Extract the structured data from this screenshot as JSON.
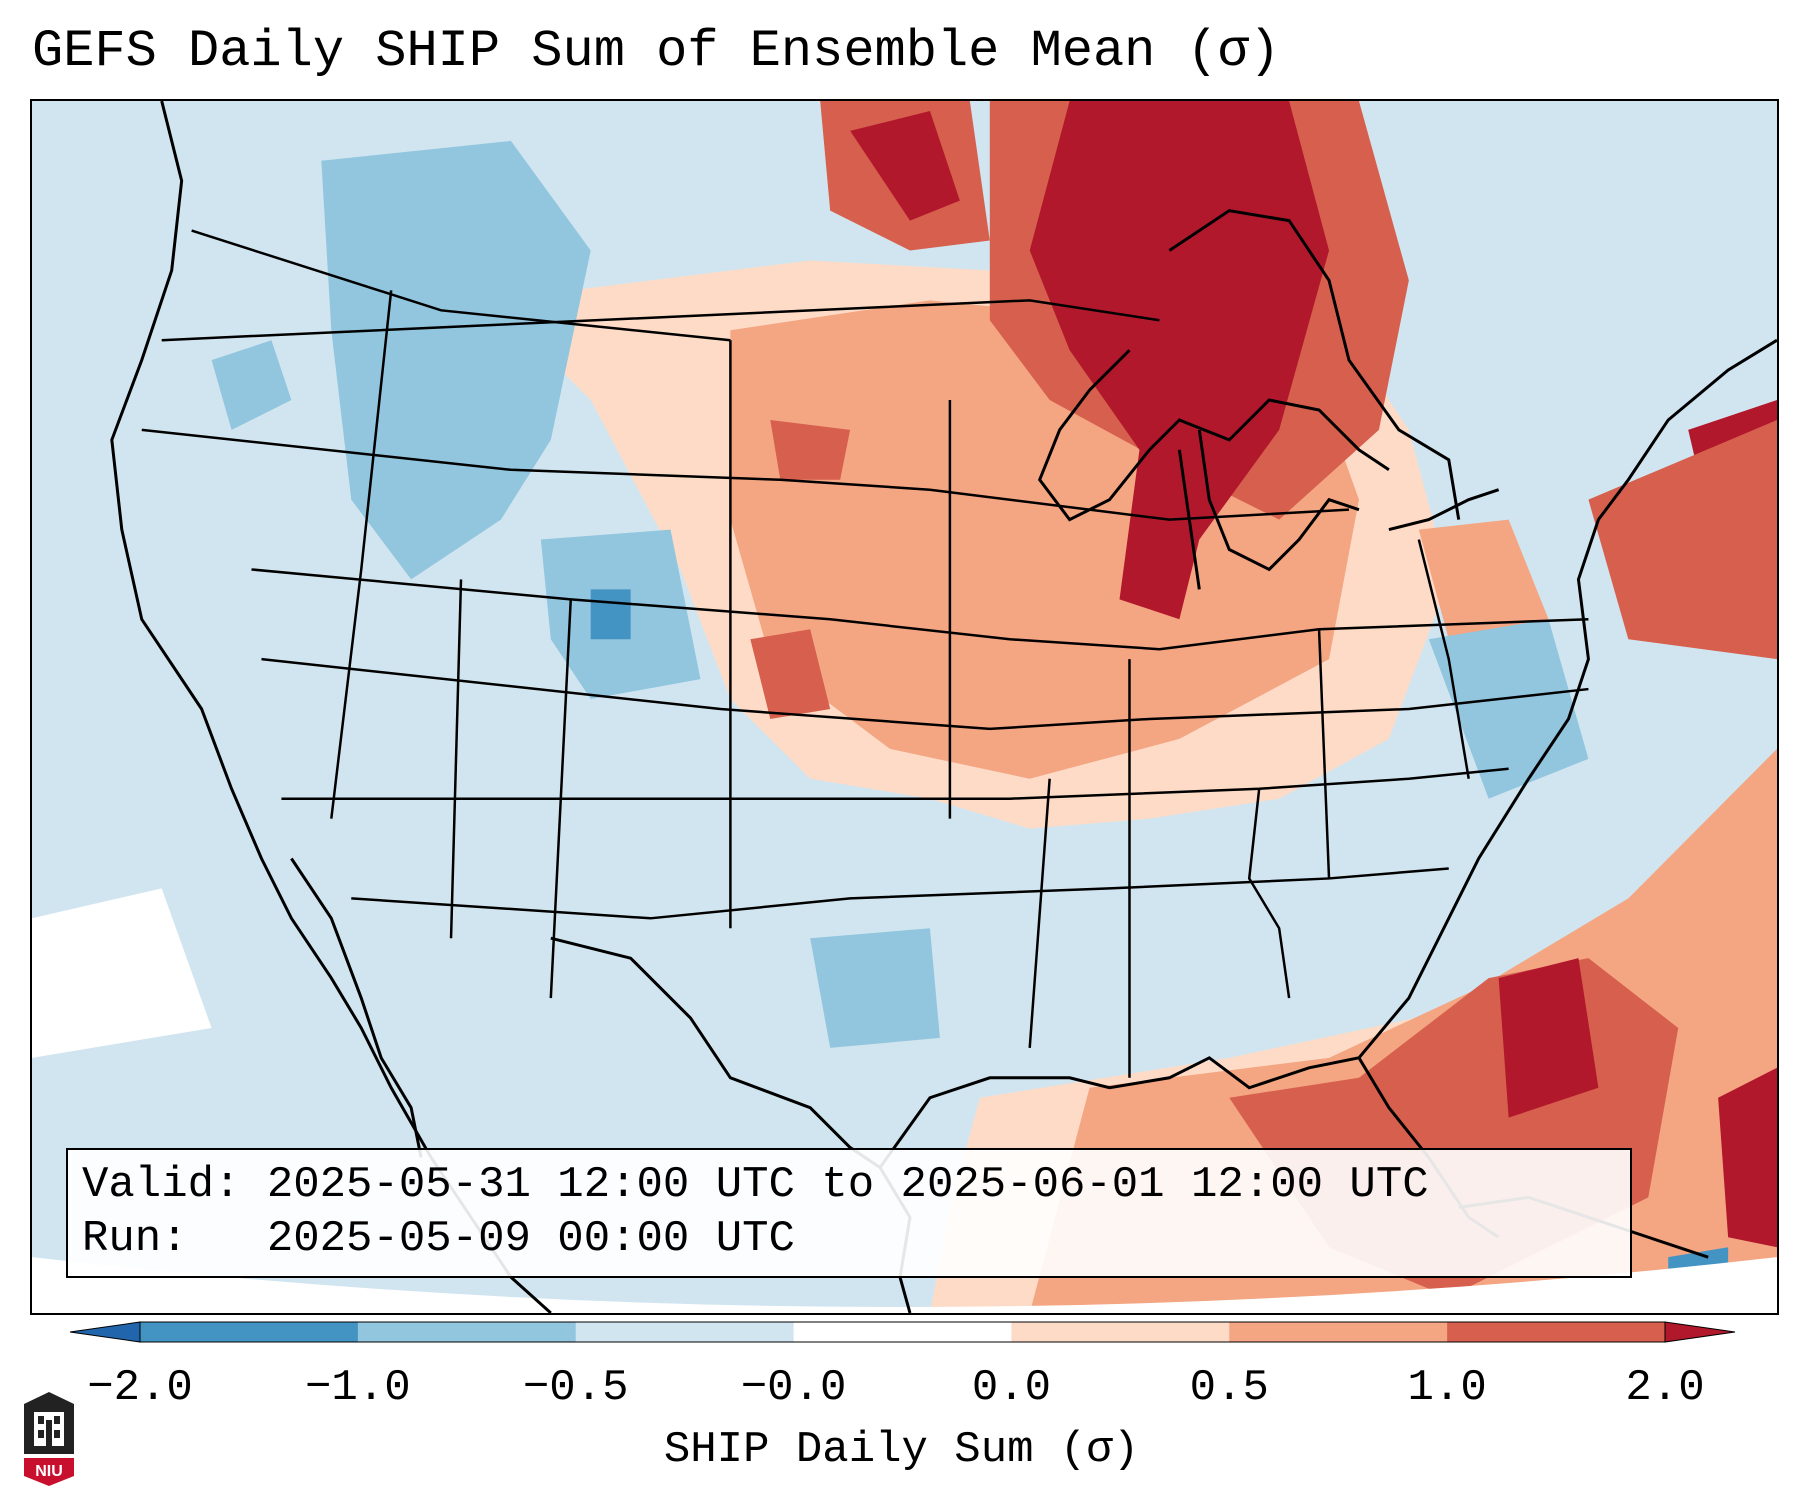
{
  "title": "GEFS Daily SHIP Sum of Ensemble Mean (σ)",
  "info": {
    "valid_label": "Valid:",
    "valid_value": "2025-05-31 12:00 UTC to 2025-06-01 12:00 UTC",
    "run_label": "Run:",
    "run_value": "2025-05-09 00:00 UTC"
  },
  "colorbar": {
    "label": "SHIP Daily Sum (σ)",
    "ticks": [
      "−2.0",
      "−1.0",
      "−0.5",
      "−0.0",
      "0.0",
      "0.5",
      "1.0",
      "2.0"
    ],
    "colors": [
      "#2166ac",
      "#4393c3",
      "#92c5de",
      "#d1e5f0",
      "#ffffff",
      "#fddbc7",
      "#f4a582",
      "#d6604d",
      "#b2182b"
    ]
  },
  "logo": {
    "text": "NIU",
    "color": "#c8102e"
  }
}
